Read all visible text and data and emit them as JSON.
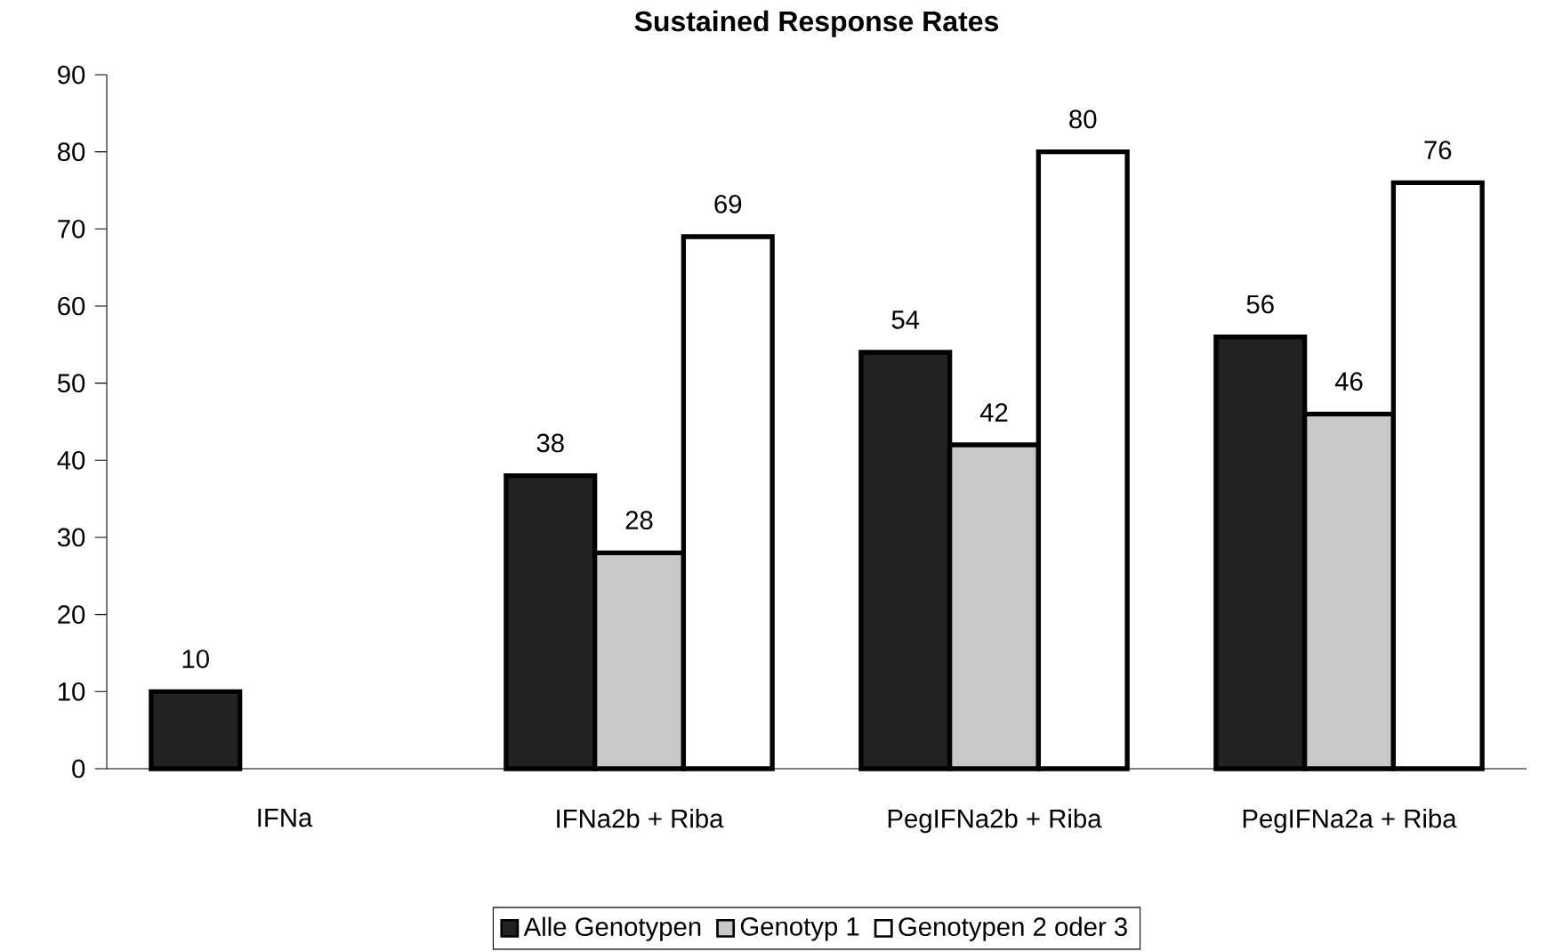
{
  "chart_data": {
    "type": "bar",
    "title": "Sustained Response Rates",
    "categories": [
      "IFNa",
      "IFNa2b + Riba",
      "PegIFNa2b + Riba",
      "PegIFNa2a + Riba"
    ],
    "series": [
      {
        "name": "Alle Genotypen",
        "color": "#222222",
        "values": [
          10,
          38,
          54,
          56
        ]
      },
      {
        "name": "Genotyp 1",
        "color": "#c8c8c8",
        "values": [
          null,
          28,
          42,
          46
        ]
      },
      {
        "name": "Genotypen 2 oder 3",
        "color": "#ffffff",
        "values": [
          null,
          69,
          80,
          76
        ]
      }
    ],
    "ylim": [
      0,
      90
    ],
    "yticks": [
      0,
      10,
      20,
      30,
      40,
      50,
      60,
      70,
      80,
      90
    ],
    "data_labels": true,
    "grid": false,
    "legend": "bottom"
  }
}
